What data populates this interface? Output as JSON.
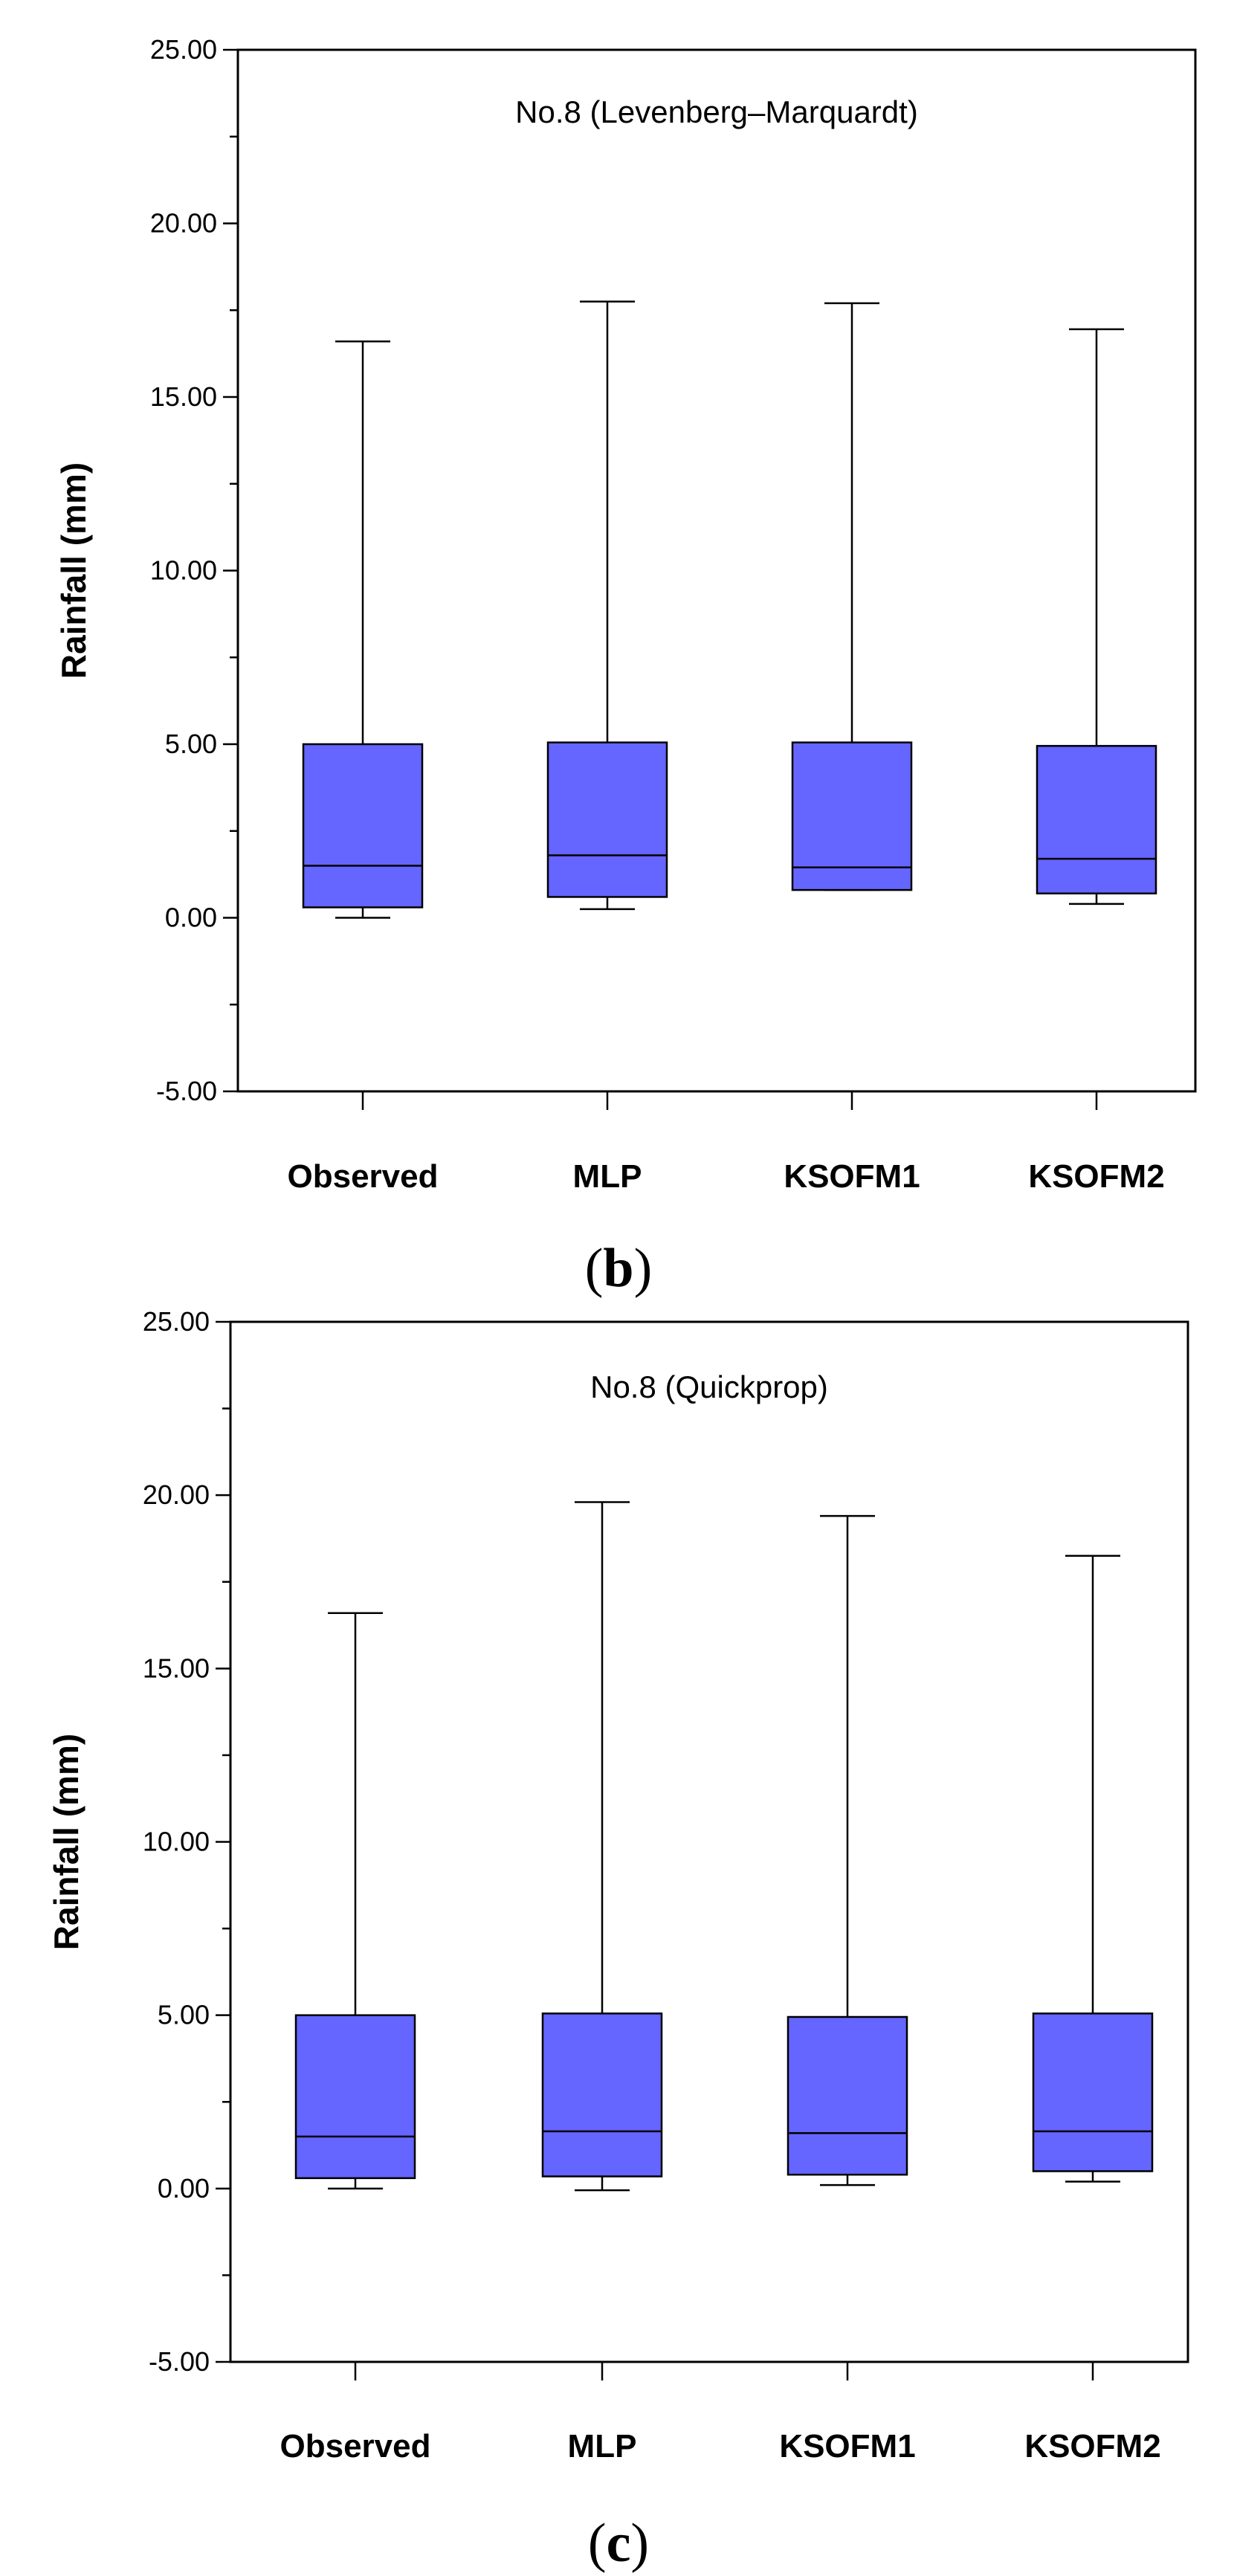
{
  "box_color": "#6565ff",
  "chart_data": [
    {
      "type": "boxplot",
      "panel_label_prefix": "(",
      "panel_label_letter": "b",
      "panel_label_suffix": ")",
      "title": "No.8 (Levenberg–Marquardt)",
      "ylabel": "Rainfall (mm)",
      "xlabel": "",
      "ylim": [
        -5,
        25
      ],
      "yticks": [
        -5,
        0,
        5,
        10,
        15,
        20,
        25
      ],
      "ytick_labels": [
        "-5.00",
        "0.00",
        "5.00",
        "10.00",
        "15.00",
        "20.00",
        "25.00"
      ],
      "minor_step": 2.5,
      "categories": [
        "Observed",
        "MLP",
        "KSOFM1",
        "KSOFM2"
      ],
      "boxes": [
        {
          "min": 0.0,
          "q1": 0.3,
          "median": 1.5,
          "q3": 5.0,
          "max": 16.6
        },
        {
          "min": 0.25,
          "q1": 0.6,
          "median": 1.8,
          "q3": 5.05,
          "max": 17.75
        },
        {
          "min": 0.8,
          "q1": 0.8,
          "median": 1.45,
          "q3": 5.05,
          "max": 17.7
        },
        {
          "min": 0.4,
          "q1": 0.7,
          "median": 1.7,
          "q3": 4.95,
          "max": 16.95
        }
      ]
    },
    {
      "type": "boxplot",
      "panel_label_prefix": "(",
      "panel_label_letter": "c",
      "panel_label_suffix": ")",
      "title": "No.8 (Quickprop)",
      "ylabel": "Rainfall (mm)",
      "xlabel": "",
      "ylim": [
        -5,
        25
      ],
      "yticks": [
        -5,
        0,
        5,
        10,
        15,
        20,
        25
      ],
      "ytick_labels": [
        "-5.00",
        "0.00",
        "5.00",
        "10.00",
        "15.00",
        "20.00",
        "25.00"
      ],
      "minor_step": 2.5,
      "categories": [
        "Observed",
        "MLP",
        "KSOFM1",
        "KSOFM2"
      ],
      "boxes": [
        {
          "min": 0.0,
          "q1": 0.3,
          "median": 1.5,
          "q3": 5.0,
          "max": 16.6
        },
        {
          "min": -0.05,
          "q1": 0.35,
          "median": 1.65,
          "q3": 5.05,
          "max": 19.8
        },
        {
          "min": 0.1,
          "q1": 0.4,
          "median": 1.6,
          "q3": 4.95,
          "max": 19.4
        },
        {
          "min": 0.2,
          "q1": 0.5,
          "median": 1.65,
          "q3": 5.05,
          "max": 18.25
        }
      ]
    }
  ]
}
